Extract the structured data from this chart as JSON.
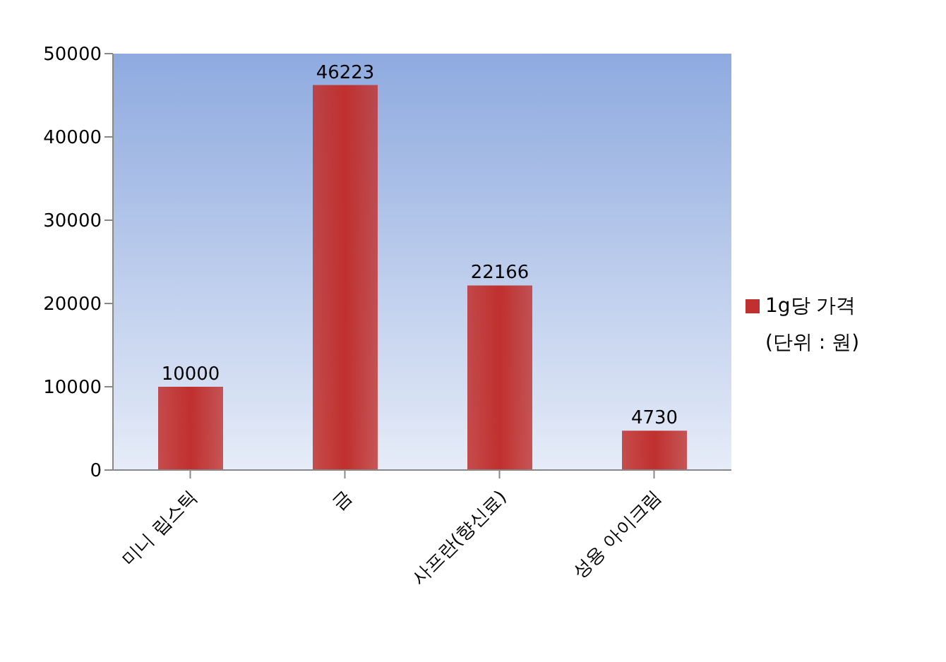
{
  "chart_data": {
    "type": "bar",
    "categories": [
      "미니 립스틱",
      "금",
      "사프란(향신료)",
      "성용 아이크림"
    ],
    "series": [
      {
        "name": "1g당 가격",
        "color": "#c0302e",
        "values": [
          10000,
          46223,
          22166,
          4730
        ]
      }
    ],
    "ylim": [
      0,
      50000
    ],
    "yticks": [
      0,
      10000,
      20000,
      30000,
      40000,
      50000
    ],
    "data_labels": true,
    "legend": "right",
    "annotations": [
      "(단위 : 원)"
    ]
  }
}
